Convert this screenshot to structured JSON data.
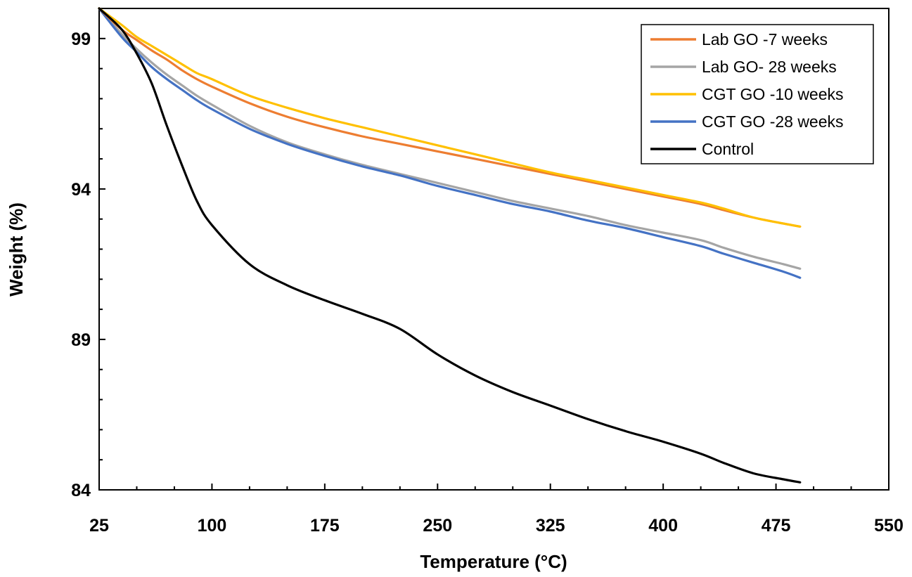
{
  "chart_data": {
    "type": "line",
    "title": "",
    "xlabel": "Temperature (°C)",
    "ylabel": "Weight (%)",
    "xlim": [
      25,
      550
    ],
    "ylim": [
      84,
      100
    ],
    "xticks": [
      25,
      100,
      175,
      250,
      325,
      400,
      475,
      550
    ],
    "yticks": [
      84,
      89,
      94,
      99
    ],
    "grid": false,
    "legend_position": "top-right",
    "x": [
      25,
      40,
      50,
      60,
      70,
      80,
      90,
      100,
      125,
      150,
      175,
      200,
      225,
      250,
      275,
      300,
      325,
      350,
      375,
      400,
      425,
      440,
      460,
      480,
      491
    ],
    "series": [
      {
        "name": "Lab GO -7 weeks",
        "color": "#ED7D31",
        "values": [
          100,
          99.3,
          98.95,
          98.6,
          98.3,
          97.95,
          97.65,
          97.4,
          96.85,
          96.4,
          96.05,
          95.75,
          95.5,
          95.25,
          95.0,
          94.75,
          94.5,
          94.25,
          94.0,
          93.75,
          93.5,
          93.3,
          93.05,
          92.85,
          92.75
        ]
      },
      {
        "name": "Lab GO- 28 weeks",
        "color": "#A5A5A5",
        "values": [
          100,
          99.15,
          98.65,
          98.2,
          97.8,
          97.45,
          97.1,
          96.8,
          96.1,
          95.55,
          95.15,
          94.8,
          94.5,
          94.2,
          93.9,
          93.6,
          93.35,
          93.1,
          92.8,
          92.55,
          92.3,
          92.05,
          91.75,
          91.5,
          91.35
        ]
      },
      {
        "name": "CGT GO -10 weeks",
        "color": "#FFC000",
        "values": [
          100,
          99.45,
          99.05,
          98.75,
          98.45,
          98.15,
          97.85,
          97.65,
          97.1,
          96.7,
          96.35,
          96.05,
          95.75,
          95.45,
          95.15,
          94.85,
          94.55,
          94.3,
          94.05,
          93.8,
          93.55,
          93.35,
          93.05,
          92.85,
          92.75
        ]
      },
      {
        "name": "CGT GO -28 weeks",
        "color": "#4472C4",
        "values": [
          100,
          99.05,
          98.55,
          98.05,
          97.65,
          97.3,
          96.95,
          96.65,
          96.0,
          95.5,
          95.1,
          94.75,
          94.45,
          94.1,
          93.8,
          93.5,
          93.25,
          92.95,
          92.7,
          92.4,
          92.1,
          91.85,
          91.55,
          91.25,
          91.05
        ]
      },
      {
        "name": "Control",
        "color": "#000000",
        "values": [
          100,
          99.3,
          98.5,
          97.5,
          96.1,
          94.8,
          93.6,
          92.8,
          91.5,
          90.8,
          90.3,
          89.85,
          89.35,
          88.5,
          87.8,
          87.25,
          86.8,
          86.35,
          85.95,
          85.6,
          85.2,
          84.9,
          84.55,
          84.35,
          84.25
        ]
      }
    ]
  }
}
